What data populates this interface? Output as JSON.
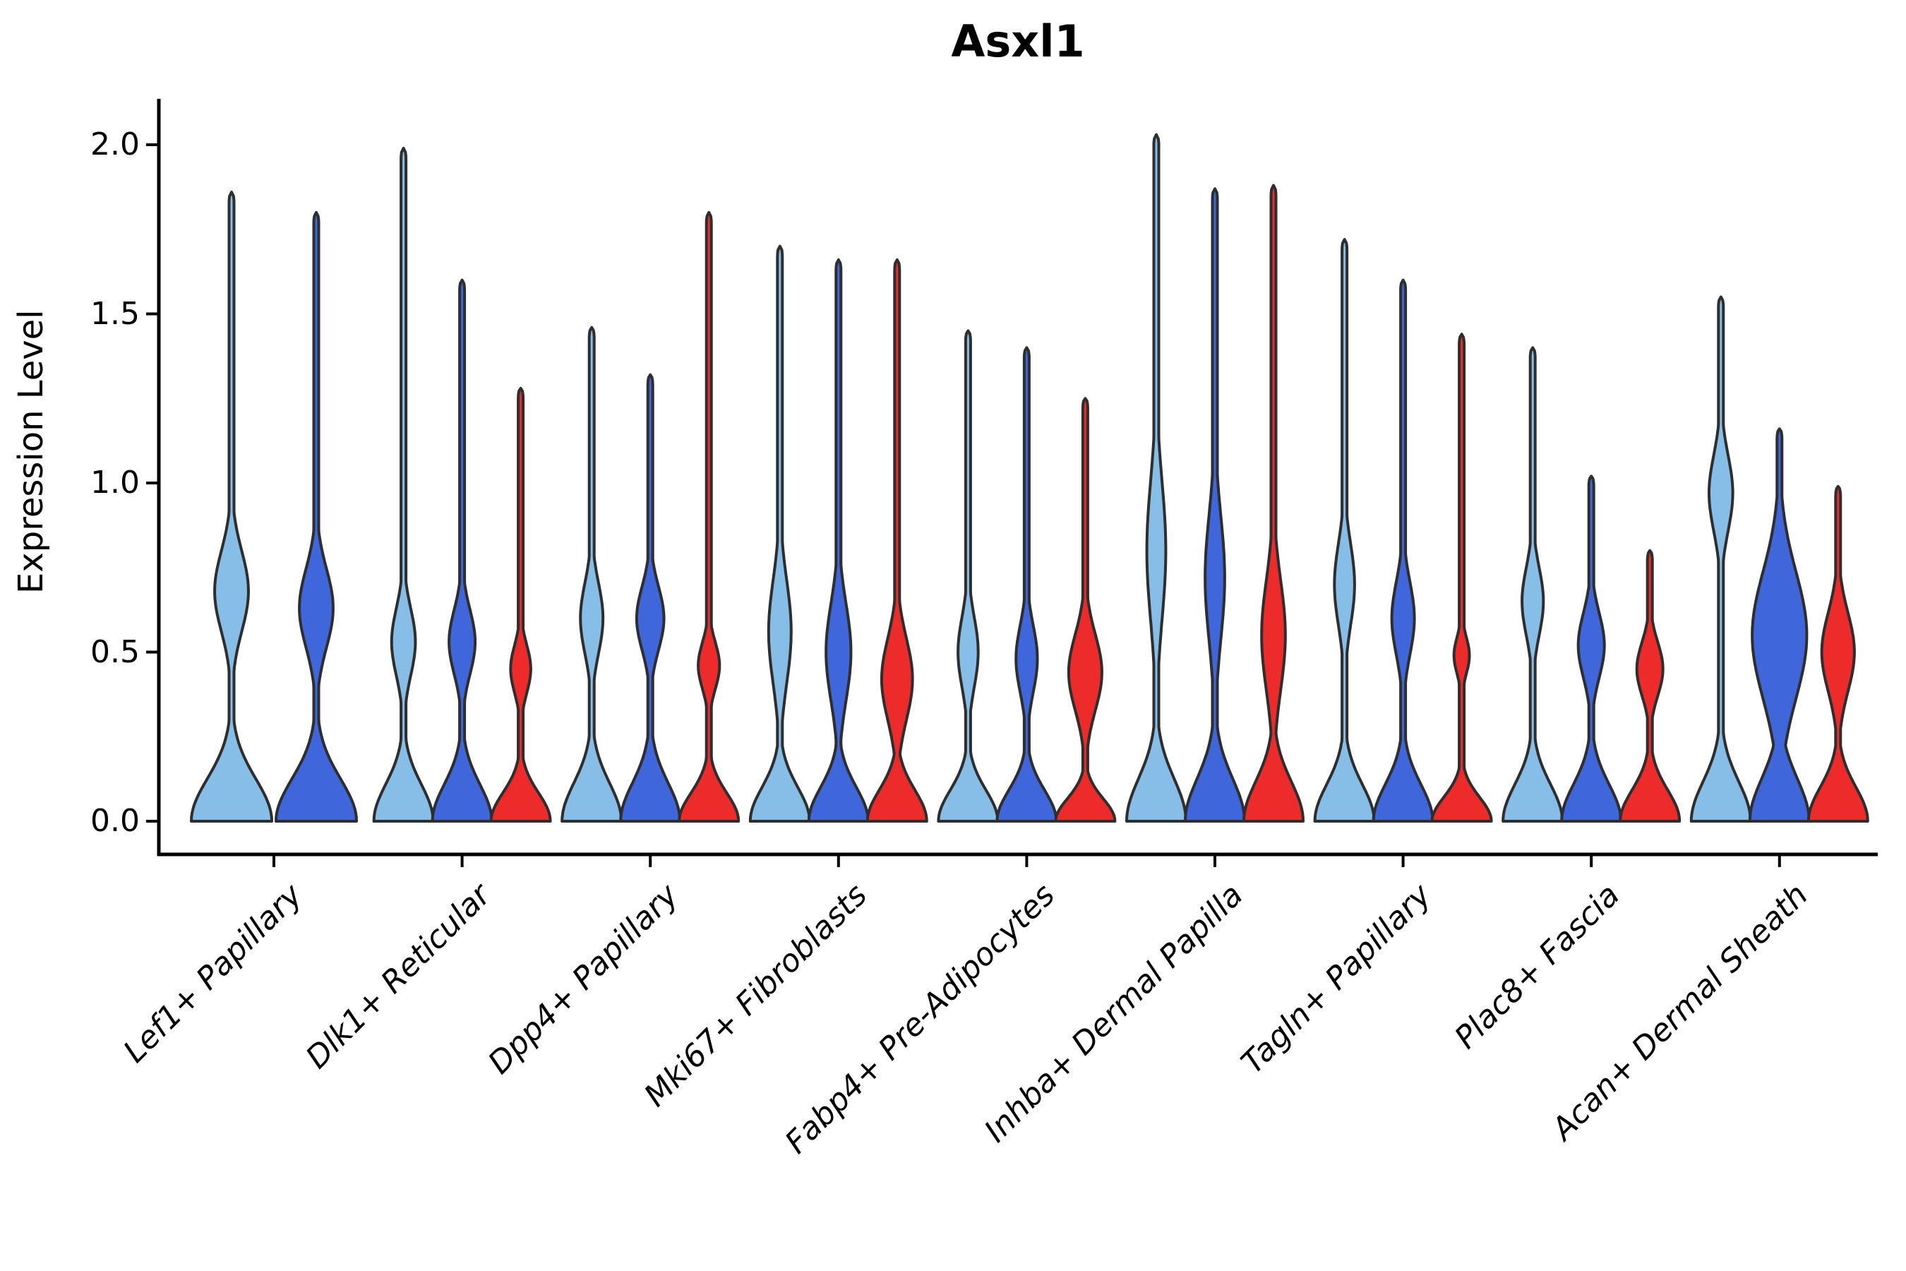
{
  "chart_data": {
    "type": "violin",
    "title": "Asxl1",
    "ylabel": "Expression Level",
    "yticks": [
      "0.0",
      "0.5",
      "1.0",
      "1.5",
      "2.0"
    ],
    "ytick_values": [
      0.0,
      0.5,
      1.0,
      1.5,
      2.0
    ],
    "ylim": [
      -0.1,
      2.13
    ],
    "grid": false,
    "legend": "none",
    "categories": [
      "Lef1+ Papillary",
      "Dlk1+ Reticular",
      "Dpp4+ Papillary",
      "Mki67+ Fibroblasts",
      "Fabp4+ Pre-Adipocytes",
      "Inhba+ Dermal Papilla",
      "Tagln+ Papillary",
      "Plac8+ Fascia",
      "Acan+ Dermal Sheath"
    ],
    "colors": {
      "series1": "#87BEE7",
      "series2": "#3F66DB",
      "series3": "#EE2B2B",
      "outline": "#2E2E2E",
      "axis": "#000000"
    },
    "groups": [
      {
        "category": "Lef1+ Papillary",
        "violins": [
          {
            "series": "series1",
            "max_expression": 1.86,
            "base_top": 0.3,
            "bulge": {
              "bottom": 0.4,
              "center": 0.68,
              "top": 0.97,
              "width": 0.42
            }
          },
          {
            "series": "series2",
            "max_expression": 1.8,
            "base_top": 0.3,
            "bulge": {
              "bottom": 0.36,
              "center": 0.63,
              "top": 0.92,
              "width": 0.42
            }
          }
        ]
      },
      {
        "category": "Dlk1+ Reticular",
        "violins": [
          {
            "series": "series1",
            "max_expression": 1.99,
            "base_top": 0.26,
            "bulge": {
              "bottom": 0.3,
              "center": 0.53,
              "top": 0.78,
              "width": 0.4
            }
          },
          {
            "series": "series2",
            "max_expression": 1.6,
            "base_top": 0.26,
            "bulge": {
              "bottom": 0.3,
              "center": 0.53,
              "top": 0.76,
              "width": 0.44
            }
          },
          {
            "series": "series3",
            "max_expression": 1.28,
            "base_top": 0.2,
            "bulge": {
              "bottom": 0.28,
              "center": 0.45,
              "top": 0.62,
              "width": 0.34
            }
          }
        ]
      },
      {
        "category": "Dpp4+ Papillary",
        "violins": [
          {
            "series": "series1",
            "max_expression": 1.46,
            "base_top": 0.27,
            "bulge": {
              "bottom": 0.36,
              "center": 0.6,
              "top": 0.86,
              "width": 0.38
            }
          },
          {
            "series": "series2",
            "max_expression": 1.32,
            "base_top": 0.27,
            "bulge": {
              "bottom": 0.38,
              "center": 0.6,
              "top": 0.83,
              "width": 0.46
            }
          },
          {
            "series": "series3",
            "max_expression": 1.8,
            "base_top": 0.2,
            "bulge": {
              "bottom": 0.3,
              "center": 0.46,
              "top": 0.63,
              "width": 0.36
            }
          }
        ]
      },
      {
        "category": "Mki67+ Fibroblasts",
        "violins": [
          {
            "series": "series1",
            "max_expression": 1.7,
            "base_top": 0.24,
            "bulge": {
              "bottom": 0.3,
              "center": 0.56,
              "top": 1.03,
              "width": 0.38
            }
          },
          {
            "series": "series2",
            "max_expression": 1.66,
            "base_top": 0.24,
            "bulge": {
              "bottom": 0.28,
              "center": 0.5,
              "top": 0.97,
              "width": 0.42
            }
          },
          {
            "series": "series3",
            "max_expression": 1.66,
            "base_top": 0.22,
            "bulge": {
              "bottom": 0.15,
              "center": 0.42,
              "top": 0.73,
              "width": 0.52
            }
          }
        ]
      },
      {
        "category": "Fabp4+ Pre-Adipocytes",
        "violins": [
          {
            "series": "series1",
            "max_expression": 1.45,
            "base_top": 0.22,
            "bulge": {
              "bottom": 0.3,
              "center": 0.5,
              "top": 0.8,
              "width": 0.34
            }
          },
          {
            "series": "series2",
            "max_expression": 1.4,
            "base_top": 0.22,
            "bulge": {
              "bottom": 0.28,
              "center": 0.48,
              "top": 0.76,
              "width": 0.36
            }
          },
          {
            "series": "series3",
            "max_expression": 1.25,
            "base_top": 0.16,
            "bulge": {
              "bottom": 0.18,
              "center": 0.44,
              "top": 0.72,
              "width": 0.56
            }
          }
        ]
      },
      {
        "category": "Inhba+ Dermal Papilla",
        "violins": [
          {
            "series": "series1",
            "max_expression": 2.03,
            "base_top": 0.3,
            "bulge": {
              "bottom": 0.35,
              "center": 0.8,
              "top": 1.33,
              "width": 0.32
            }
          },
          {
            "series": "series2",
            "max_expression": 1.87,
            "base_top": 0.3,
            "bulge": {
              "bottom": 0.32,
              "center": 0.72,
              "top": 1.2,
              "width": 0.33
            }
          },
          {
            "series": "series3",
            "max_expression": 1.88,
            "base_top": 0.28,
            "bulge": {
              "bottom": 0.25,
              "center": 0.55,
              "top": 1.03,
              "width": 0.4
            }
          }
        ]
      },
      {
        "category": "Tagln+ Papillary",
        "violins": [
          {
            "series": "series1",
            "max_expression": 1.72,
            "base_top": 0.26,
            "bulge": {
              "bottom": 0.42,
              "center": 0.7,
              "top": 1.0,
              "width": 0.34
            }
          },
          {
            "series": "series2",
            "max_expression": 1.6,
            "base_top": 0.26,
            "bulge": {
              "bottom": 0.36,
              "center": 0.6,
              "top": 0.88,
              "width": 0.38
            }
          },
          {
            "series": "series3",
            "max_expression": 1.44,
            "base_top": 0.17,
            "bulge": {
              "bottom": 0.36,
              "center": 0.49,
              "top": 0.62,
              "width": 0.26
            }
          }
        ]
      },
      {
        "category": "Plac8+ Fascia",
        "violins": [
          {
            "series": "series1",
            "max_expression": 1.4,
            "base_top": 0.26,
            "bulge": {
              "bottom": 0.42,
              "center": 0.65,
              "top": 0.9,
              "width": 0.36
            }
          },
          {
            "series": "series2",
            "max_expression": 1.02,
            "base_top": 0.26,
            "bulge": {
              "bottom": 0.3,
              "center": 0.52,
              "top": 0.76,
              "width": 0.44
            }
          },
          {
            "series": "series3",
            "max_expression": 0.8,
            "base_top": 0.22,
            "bulge": {
              "bottom": 0.26,
              "center": 0.45,
              "top": 0.64,
              "width": 0.44
            }
          }
        ]
      },
      {
        "category": "Acan+ Dermal Sheath",
        "violins": [
          {
            "series": "series1",
            "max_expression": 1.55,
            "base_top": 0.28,
            "bulge": {
              "bottom": 0.7,
              "center": 0.97,
              "top": 1.24,
              "width": 0.4
            }
          },
          {
            "series": "series2",
            "max_expression": 1.16,
            "base_top": 0.3,
            "bulge": {
              "bottom": 0.12,
              "center": 0.55,
              "top": 1.02,
              "width": 0.92
            }
          },
          {
            "series": "series3",
            "max_expression": 0.99,
            "base_top": 0.24,
            "bulge": {
              "bottom": 0.24,
              "center": 0.5,
              "top": 0.8,
              "width": 0.55
            }
          }
        ]
      }
    ]
  }
}
